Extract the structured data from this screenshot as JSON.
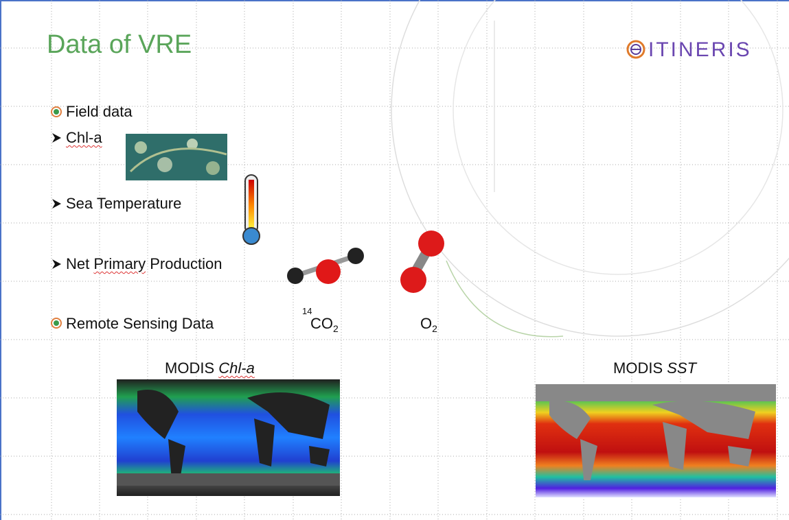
{
  "header": {
    "title": "Data of VRE",
    "logo": "ITINERIS"
  },
  "bullets": {
    "field": "Field data",
    "chl": "Chl-a",
    "temp": "Sea Temperature",
    "npp_pre": "Net ",
    "npp_mid": "Primary",
    "npp_post": " Production",
    "remote": "Remote Sensing Data"
  },
  "molecules": {
    "co2": {
      "superscript": "14",
      "formula": "CO",
      "subscript": "2"
    },
    "o2": {
      "formula": "O",
      "subscript": "2"
    }
  },
  "captions": {
    "chl": {
      "prefix": "MODIS",
      "italic": "Chl-a"
    },
    "sst": {
      "prefix": "MODIS",
      "italic": "SST"
    }
  }
}
